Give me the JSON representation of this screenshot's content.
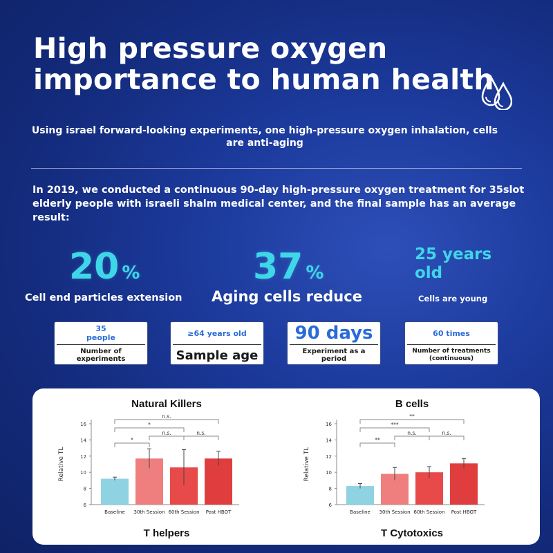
{
  "header": {
    "title_line1": "High pressure oxygen",
    "title_line2": "importance to human health",
    "subtitle": "Using israel forward-looking experiments, one high-pressure oxygen inhalation, cells are anti-aging",
    "intro": "In 2019, we conducted a continuous 90-day high-pressure oxygen treatment for 35slot elderly people with israeli shalm medical center, and the final sample has an average result:"
  },
  "stats": {
    "s1_value": "20",
    "s1_unit": "%",
    "s1_label": "Cell end particles extension",
    "s2_value": "37",
    "s2_unit": "%",
    "s2_label": "Aging cells reduce",
    "s3_line1": "25 years",
    "s3_line2": "old",
    "s3_label": "Cells are young"
  },
  "cards": {
    "c1_value_line1": "35",
    "c1_value_line2": "people",
    "c1_label_line1": "Number of",
    "c1_label_line2": "experiments",
    "c2_value": "≥64 years old",
    "c2_label": "Sample age",
    "c3_value": "90 days",
    "c3_label_line1": "Experiment as a",
    "c3_label_line2": "period",
    "c4_value": "60 times",
    "c4_label_line1": "Number of treatments",
    "c4_label_line2": "(continuous)"
  },
  "colors": {
    "accent_cyan": "#3fd6e8",
    "bar_baseline": "#8fd3e3",
    "bar_30th": "#ef7f7f",
    "bar_60th": "#e84a4a",
    "bar_post": "#e03e3e"
  },
  "chart_data": [
    {
      "type": "bar",
      "title": "Natural Killers",
      "caption": "T helpers",
      "ylabel": "Relative TL",
      "ylim": [
        6,
        16
      ],
      "yticks": [
        "6",
        "8",
        "10",
        "12",
        "14",
        "16"
      ],
      "categories": [
        "Baseline",
        "30th Session",
        "60th Session",
        "Post HBOT"
      ],
      "values": [
        9.2,
        11.7,
        10.6,
        11.7
      ],
      "errors": [
        0.2,
        1.2,
        2.2,
        0.9
      ],
      "significance": [
        {
          "from": 0,
          "to": 3,
          "label": "n.s."
        },
        {
          "from": 0,
          "to": 2,
          "label": "*"
        },
        {
          "from": 0,
          "to": 1,
          "label": "*"
        },
        {
          "from": 1,
          "to": 2,
          "label": "n.s."
        },
        {
          "from": 2,
          "to": 3,
          "label": "n.s."
        }
      ]
    },
    {
      "type": "bar",
      "title": "B cells",
      "caption": "T Cytotoxics",
      "ylabel": "Relative TL",
      "ylim": [
        6,
        16
      ],
      "yticks": [
        "6",
        "8",
        "10",
        "12",
        "14",
        "16"
      ],
      "categories": [
        "Baseline",
        "30th Session",
        "60th Session",
        "Post HBOT"
      ],
      "values": [
        8.3,
        9.8,
        10.0,
        11.1
      ],
      "errors": [
        0.3,
        0.8,
        0.7,
        0.6
      ],
      "significance": [
        {
          "from": 0,
          "to": 3,
          "label": "**"
        },
        {
          "from": 0,
          "to": 2,
          "label": "***"
        },
        {
          "from": 0,
          "to": 1,
          "label": "**"
        },
        {
          "from": 1,
          "to": 2,
          "label": "n.s."
        },
        {
          "from": 2,
          "to": 3,
          "label": "n.s."
        }
      ]
    }
  ]
}
